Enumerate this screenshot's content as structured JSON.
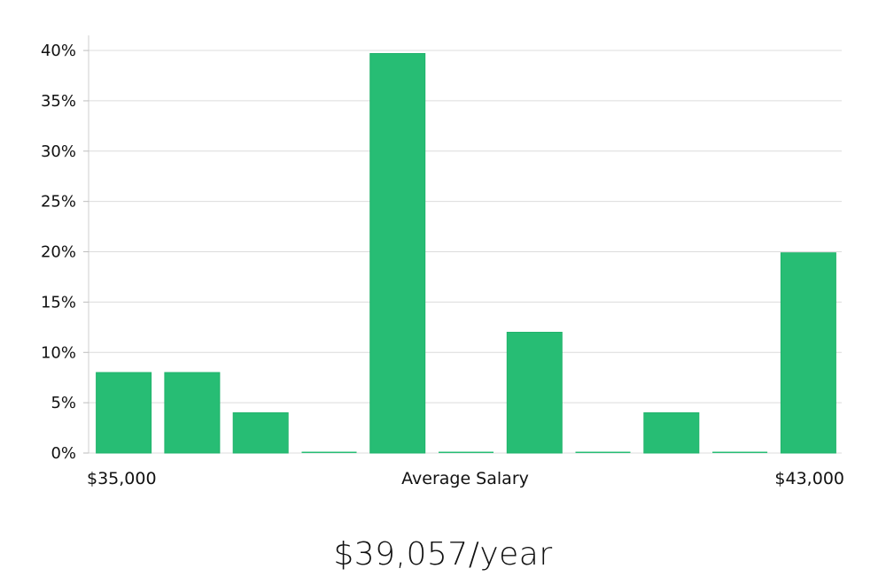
{
  "chart_data": {
    "type": "bar",
    "categories": [
      "1",
      "2",
      "3",
      "4",
      "5",
      "6",
      "7",
      "8",
      "9",
      "10",
      "11"
    ],
    "values": [
      8,
      8,
      4,
      0,
      39.7,
      0,
      12,
      0,
      4,
      0,
      19.9
    ],
    "ylim": [
      0,
      41.5
    ],
    "yticks": [
      0,
      5,
      10,
      15,
      20,
      25,
      30,
      35,
      40
    ],
    "ytick_suffix": "%",
    "grid": true,
    "bar_color": "#27bd74",
    "zero_bar_colors": [
      "#27bd74",
      "#27bd74",
      "#27bd74",
      "#27bd74",
      "#1a1a4a",
      "#27bd74",
      "#27bd74",
      "#27bd74",
      "#27bd74",
      "#27bd74",
      "#27bd74"
    ],
    "x_labels": {
      "left": "$35,000",
      "center": "Average Salary",
      "right": "$43,000"
    }
  },
  "summary": {
    "headline": "$39,057/year"
  }
}
